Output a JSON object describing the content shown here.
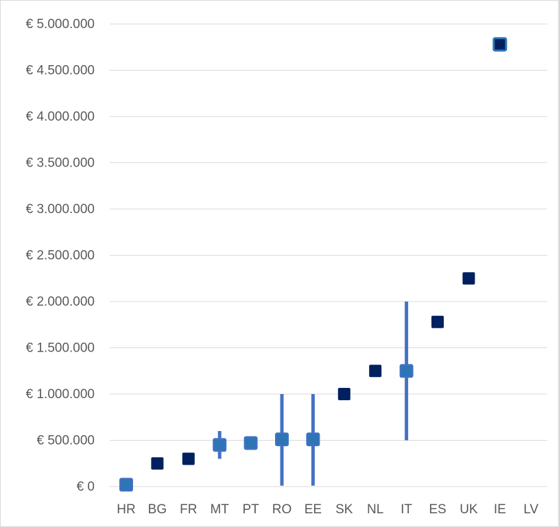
{
  "chart_data": {
    "type": "scatter",
    "categories": [
      "HR",
      "BG",
      "FR",
      "MT",
      "PT",
      "RO",
      "EE",
      "SK",
      "NL",
      "IT",
      "ES",
      "UK",
      "IE",
      "LV"
    ],
    "yticks": [
      0,
      500000,
      1000000,
      1500000,
      2000000,
      2500000,
      3000000,
      3500000,
      4000000,
      4500000,
      5000000
    ],
    "ytick_labels": [
      "€ 0",
      "€ 500.000",
      "€ 1.000.000",
      "€ 1.500.000",
      "€ 2.000.000",
      "€ 2.500.000",
      "€ 3.000.000",
      "€ 3.500.000",
      "€ 4.000.000",
      "€ 4.500.000",
      "€ 5.000.000"
    ],
    "ylim": [
      0,
      5000000
    ],
    "grid": true,
    "points": [
      {
        "category": "HR",
        "value": 20000,
        "style": "light"
      },
      {
        "category": "BG",
        "value": 250000,
        "style": "dark"
      },
      {
        "category": "FR",
        "value": 300000,
        "style": "dark"
      },
      {
        "category": "MT",
        "value": 450000,
        "style": "light",
        "range": [
          300000,
          600000
        ]
      },
      {
        "category": "PT",
        "value": 470000,
        "style": "light"
      },
      {
        "category": "RO",
        "value": 510000,
        "style": "light",
        "range": [
          10000,
          1000000
        ]
      },
      {
        "category": "EE",
        "value": 510000,
        "style": "light",
        "range": [
          10000,
          1000000
        ]
      },
      {
        "category": "SK",
        "value": 1000000,
        "style": "dark"
      },
      {
        "category": "NL",
        "value": 1250000,
        "style": "dark"
      },
      {
        "category": "IT",
        "value": 1250000,
        "style": "light",
        "range": [
          500000,
          2000000
        ]
      },
      {
        "category": "ES",
        "value": 1780000,
        "style": "dark"
      },
      {
        "category": "UK",
        "value": 2250000,
        "style": "dark"
      },
      {
        "category": "IE",
        "value": 4780000,
        "style": "outlined"
      }
    ],
    "colors": {
      "dark": "#002060",
      "light": "#2e75b6",
      "light_border": "#4472c4",
      "range_line": "#4472c4",
      "grid": "#d9d9d9",
      "text": "#595959"
    }
  }
}
